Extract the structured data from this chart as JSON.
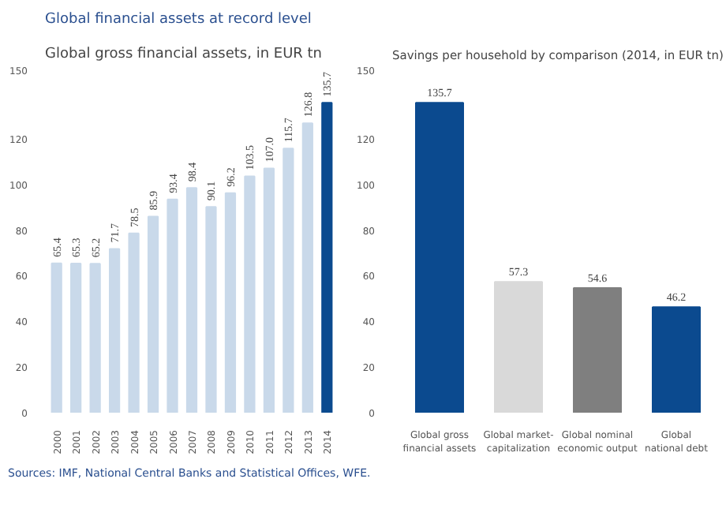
{
  "chart_data": [
    {
      "type": "bar",
      "title": "Global financial assets at record level",
      "subtitle": "Global gross financial assets, in EUR tn",
      "categories": [
        "2000",
        "2001",
        "2002",
        "2003",
        "2004",
        "2005",
        "2006",
        "2007",
        "2008",
        "2009",
        "2010",
        "2011",
        "2012",
        "2013",
        "2014"
      ],
      "values": [
        65.4,
        65.3,
        65.2,
        71.7,
        78.5,
        85.9,
        93.4,
        98.4,
        90.1,
        96.2,
        103.5,
        107.0,
        115.7,
        126.8,
        135.7
      ],
      "value_labels": [
        "65.4",
        "65.3",
        "65.2",
        "71.7",
        "78.5",
        "85.9",
        "93.4",
        "98.4",
        "90.1",
        "96.2",
        "103.5",
        "107.0",
        "115.7",
        "126.8",
        "135.7"
      ],
      "colors": [
        "#c9d9ea",
        "#c9d9ea",
        "#c9d9ea",
        "#c9d9ea",
        "#c9d9ea",
        "#c9d9ea",
        "#c9d9ea",
        "#c9d9ea",
        "#c9d9ea",
        "#c9d9ea",
        "#c9d9ea",
        "#c9d9ea",
        "#c9d9ea",
        "#c9d9ea",
        "#0b4a8f"
      ],
      "ylim": [
        0,
        150
      ],
      "yticks": [
        0,
        20,
        40,
        60,
        80,
        100,
        120,
        150
      ],
      "grid": false,
      "annotations": [
        "Sources: IMF, National Central Banks and Statistical Offices, WFE."
      ]
    },
    {
      "type": "bar",
      "title": "Savings per household by comparison (2014, in EUR tn)",
      "categories": [
        "Global gross\nfinancial assets",
        "Global market-\ncapitalization",
        "Global nominal\neconomic output",
        "Global\nnational debt"
      ],
      "values": [
        135.7,
        57.3,
        54.6,
        46.2
      ],
      "data_labels": true,
      "colors": [
        "#0b4a8f",
        "#d9d9d9",
        "#7f7f7f",
        "#0b4a8f"
      ],
      "ylim": [
        0,
        150
      ],
      "yticks": [
        0,
        20,
        40,
        60,
        80,
        100,
        120,
        150
      ],
      "grid": false
    }
  ]
}
